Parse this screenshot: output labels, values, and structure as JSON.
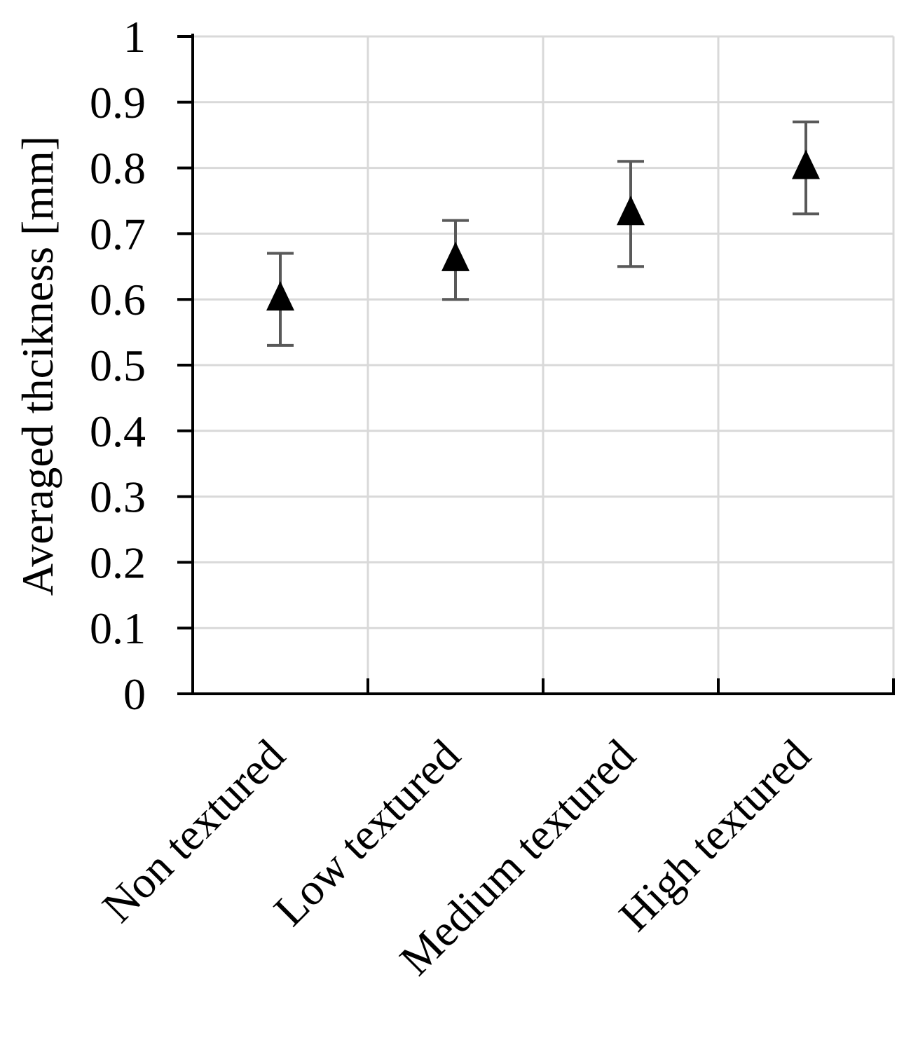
{
  "chart_data": {
    "type": "scatter",
    "title": "",
    "xlabel": "",
    "ylabel": "Averaged thcikness [mm]",
    "categories": [
      "Non textured",
      "Low textured",
      "Medium textured",
      "High textured"
    ],
    "series": [
      {
        "values": [
          0.6,
          0.66,
          0.73,
          0.8
        ],
        "error_low": [
          0.53,
          0.6,
          0.65,
          0.73
        ],
        "error_high": [
          0.67,
          0.72,
          0.81,
          0.87
        ],
        "marker": "triangle",
        "color": "#000000"
      }
    ],
    "ylim": [
      0,
      1
    ],
    "yticks": [
      0,
      0.1,
      0.2,
      0.3,
      0.4,
      0.5,
      0.6,
      0.7,
      0.8,
      0.9,
      1
    ],
    "ytick_labels": [
      "0",
      "0.1",
      "0.2",
      "0.3",
      "0.4",
      "0.5",
      "0.6",
      "0.7",
      "0.8",
      "0.9",
      "1"
    ],
    "grid": true,
    "legend": "none",
    "colors": {
      "grid": "#d9d9d9",
      "axis": "#000000",
      "errorbar": "#595959",
      "marker": "#000000"
    }
  }
}
